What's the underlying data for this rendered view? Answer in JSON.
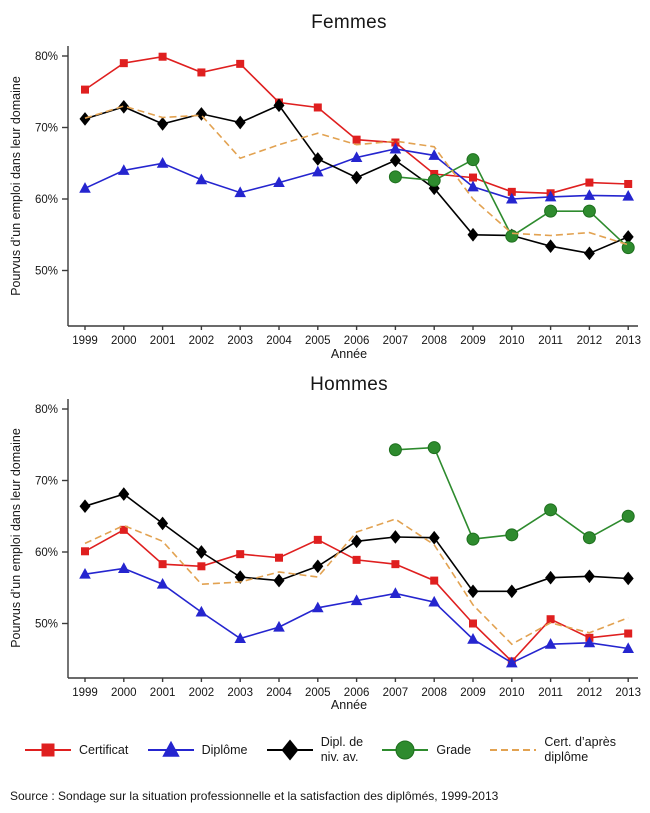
{
  "source": "Source : Sondage sur la situation professionnelle et la satisfaction des diplômés, 1999-2013",
  "colors": {
    "certificat": "#df1f1f",
    "diplome": "#2525cf",
    "dipl_niv_av": "#000000",
    "grade": "#2e8b2e",
    "grade_edge": "#1e6f1e",
    "cert_apres_diplome": "#e2a251",
    "axis": "#3a3a3a",
    "text": "#161616"
  },
  "legend": {
    "items": [
      {
        "id": "certificat",
        "lines": [
          "Certificat"
        ],
        "marker": "square",
        "color": "#df1f1f",
        "dash": null
      },
      {
        "id": "diplome",
        "lines": [
          "Diplôme"
        ],
        "marker": "triangle",
        "color": "#2525cf",
        "dash": null
      },
      {
        "id": "dipl-niv-av",
        "lines": [
          "Dipl. de",
          "niv. av."
        ],
        "marker": "diamond",
        "color": "#000000",
        "dash": null
      },
      {
        "id": "grade",
        "lines": [
          "Grade"
        ],
        "marker": "circle",
        "color": "#2e8b2e",
        "dash": null
      },
      {
        "id": "cert-apres-diplome",
        "lines": [
          "Cert. d’après",
          "diplôme"
        ],
        "marker": "none",
        "color": "#e2a251",
        "dash": "7,4"
      }
    ]
  },
  "chart_data": [
    {
      "type": "line",
      "title": "Femmes",
      "xlabel": "Année",
      "ylabel": "Pourvus d’un emploi dans leur domaine",
      "x": [
        1999,
        2000,
        2001,
        2002,
        2003,
        2004,
        2005,
        2006,
        2007,
        2008,
        2009,
        2010,
        2011,
        2012,
        2013
      ],
      "ylim": [
        42,
        81
      ],
      "yticks": [
        80,
        70,
        60,
        50
      ],
      "ytick_suffix": "%",
      "grid": false,
      "legend_position": "bottom-shared",
      "series": [
        {
          "id": "certificat",
          "name": "Certificat",
          "marker": "square",
          "dash": null,
          "color": "#df1f1f",
          "values": [
            75.3,
            79.0,
            79.9,
            77.7,
            78.9,
            73.5,
            72.8,
            68.3,
            67.9,
            63.5,
            63.0,
            61.0,
            60.8,
            62.3,
            62.1
          ]
        },
        {
          "id": "diplome",
          "name": "Diplôme",
          "marker": "triangle",
          "dash": null,
          "color": "#2525cf",
          "values": [
            61.5,
            64.0,
            65.0,
            62.7,
            60.9,
            62.3,
            63.8,
            65.8,
            67.0,
            66.1,
            61.7,
            60.0,
            60.3,
            60.5,
            60.4
          ]
        },
        {
          "id": "dipl-niv-av",
          "name": "Dipl. de niv. av.",
          "marker": "diamond",
          "dash": null,
          "color": "#000000",
          "values": [
            71.2,
            72.9,
            70.5,
            71.9,
            70.7,
            73.1,
            65.6,
            63.0,
            65.4,
            61.5,
            55.0,
            54.9,
            53.4,
            52.4,
            54.7
          ]
        },
        {
          "id": "grade",
          "name": "Grade",
          "marker": "circle",
          "dash": null,
          "color": "#2e8b2e",
          "values": [
            null,
            null,
            null,
            null,
            null,
            null,
            null,
            null,
            63.1,
            62.6,
            65.5,
            54.8,
            58.3,
            58.3,
            53.2
          ]
        },
        {
          "id": "cert-apres-diplome",
          "name": "Cert. d’après diplôme",
          "marker": "none",
          "dash": "7,4",
          "color": "#e2a251",
          "values": [
            71.3,
            73.0,
            71.4,
            71.7,
            65.7,
            67.6,
            69.2,
            67.6,
            68.1,
            67.3,
            60.0,
            55.2,
            54.9,
            55.3,
            53.6
          ]
        }
      ]
    },
    {
      "type": "line",
      "title": "Hommes",
      "xlabel": "Année",
      "ylabel": "Pourvus d’un emploi dans leur domaine",
      "x": [
        1999,
        2000,
        2001,
        2002,
        2003,
        2004,
        2005,
        2006,
        2007,
        2008,
        2009,
        2010,
        2011,
        2012,
        2013
      ],
      "ylim": [
        42,
        81
      ],
      "yticks": [
        80,
        70,
        60,
        50
      ],
      "ytick_suffix": "%",
      "grid": false,
      "legend_position": "bottom-shared",
      "series": [
        {
          "id": "certificat",
          "name": "Certificat",
          "marker": "square",
          "dash": null,
          "color": "#df1f1f",
          "values": [
            60.1,
            63.1,
            58.3,
            58.0,
            59.7,
            59.2,
            61.7,
            58.9,
            58.3,
            56.0,
            50.0,
            44.7,
            50.6,
            48.0,
            48.6
          ]
        },
        {
          "id": "diplome",
          "name": "Diplôme",
          "marker": "triangle",
          "dash": null,
          "color": "#2525cf",
          "values": [
            56.9,
            57.7,
            55.5,
            51.6,
            47.9,
            49.5,
            52.2,
            53.2,
            54.2,
            53.0,
            47.8,
            44.5,
            47.1,
            47.3,
            46.5
          ]
        },
        {
          "id": "dipl-niv-av",
          "name": "Dipl. de niv. av.",
          "marker": "diamond",
          "dash": null,
          "color": "#000000",
          "values": [
            66.4,
            68.1,
            64.0,
            60.0,
            56.5,
            56.0,
            58.0,
            61.5,
            62.1,
            62.0,
            54.5,
            54.5,
            56.4,
            56.6,
            56.3
          ]
        },
        {
          "id": "grade",
          "name": "Grade",
          "marker": "circle",
          "dash": null,
          "color": "#2e8b2e",
          "values": [
            null,
            null,
            null,
            null,
            null,
            null,
            null,
            null,
            74.3,
            74.6,
            61.8,
            62.4,
            65.9,
            62.0,
            65.0
          ]
        },
        {
          "id": "cert-apres-diplome",
          "name": "Cert. d’après diplôme",
          "marker": "none",
          "dash": "7,4",
          "color": "#e2a251",
          "values": [
            61.2,
            63.7,
            61.5,
            55.5,
            55.8,
            57.2,
            56.5,
            62.8,
            64.6,
            61.0,
            52.6,
            47.1,
            50.1,
            48.7,
            50.8
          ]
        }
      ]
    }
  ]
}
